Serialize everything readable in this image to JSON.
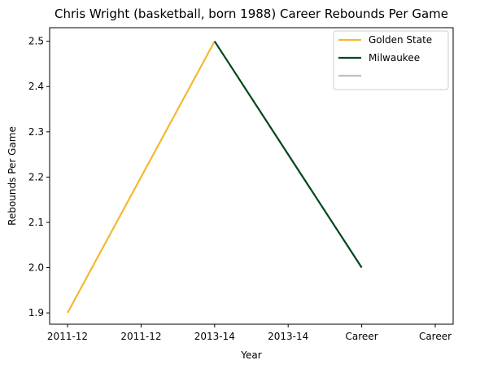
{
  "chart_data": {
    "type": "line",
    "title": "Chris Wright (basketball, born 1988) Career Rebounds Per Game",
    "xlabel": "Year",
    "ylabel": "Rebounds Per Game",
    "categories": [
      "2011-12",
      "2011-12",
      "2013-14",
      "2013-14",
      "Career",
      "Career"
    ],
    "y_ticks": [
      1.9,
      2.0,
      2.1,
      2.2,
      2.3,
      2.4,
      2.5
    ],
    "ylim": [
      1.875,
      2.53
    ],
    "grid": false,
    "legend_position": "top-right",
    "series": [
      {
        "name": "Golden State",
        "color": "#F5B82E",
        "points": [
          [
            0,
            1.9
          ],
          [
            2,
            2.5
          ]
        ]
      },
      {
        "name": "Milwaukee",
        "color": "#00471B",
        "points": [
          [
            2,
            2.5
          ],
          [
            4,
            2.0
          ]
        ]
      },
      {
        "name": "",
        "color": "#C0C0C0",
        "points": []
      }
    ]
  }
}
